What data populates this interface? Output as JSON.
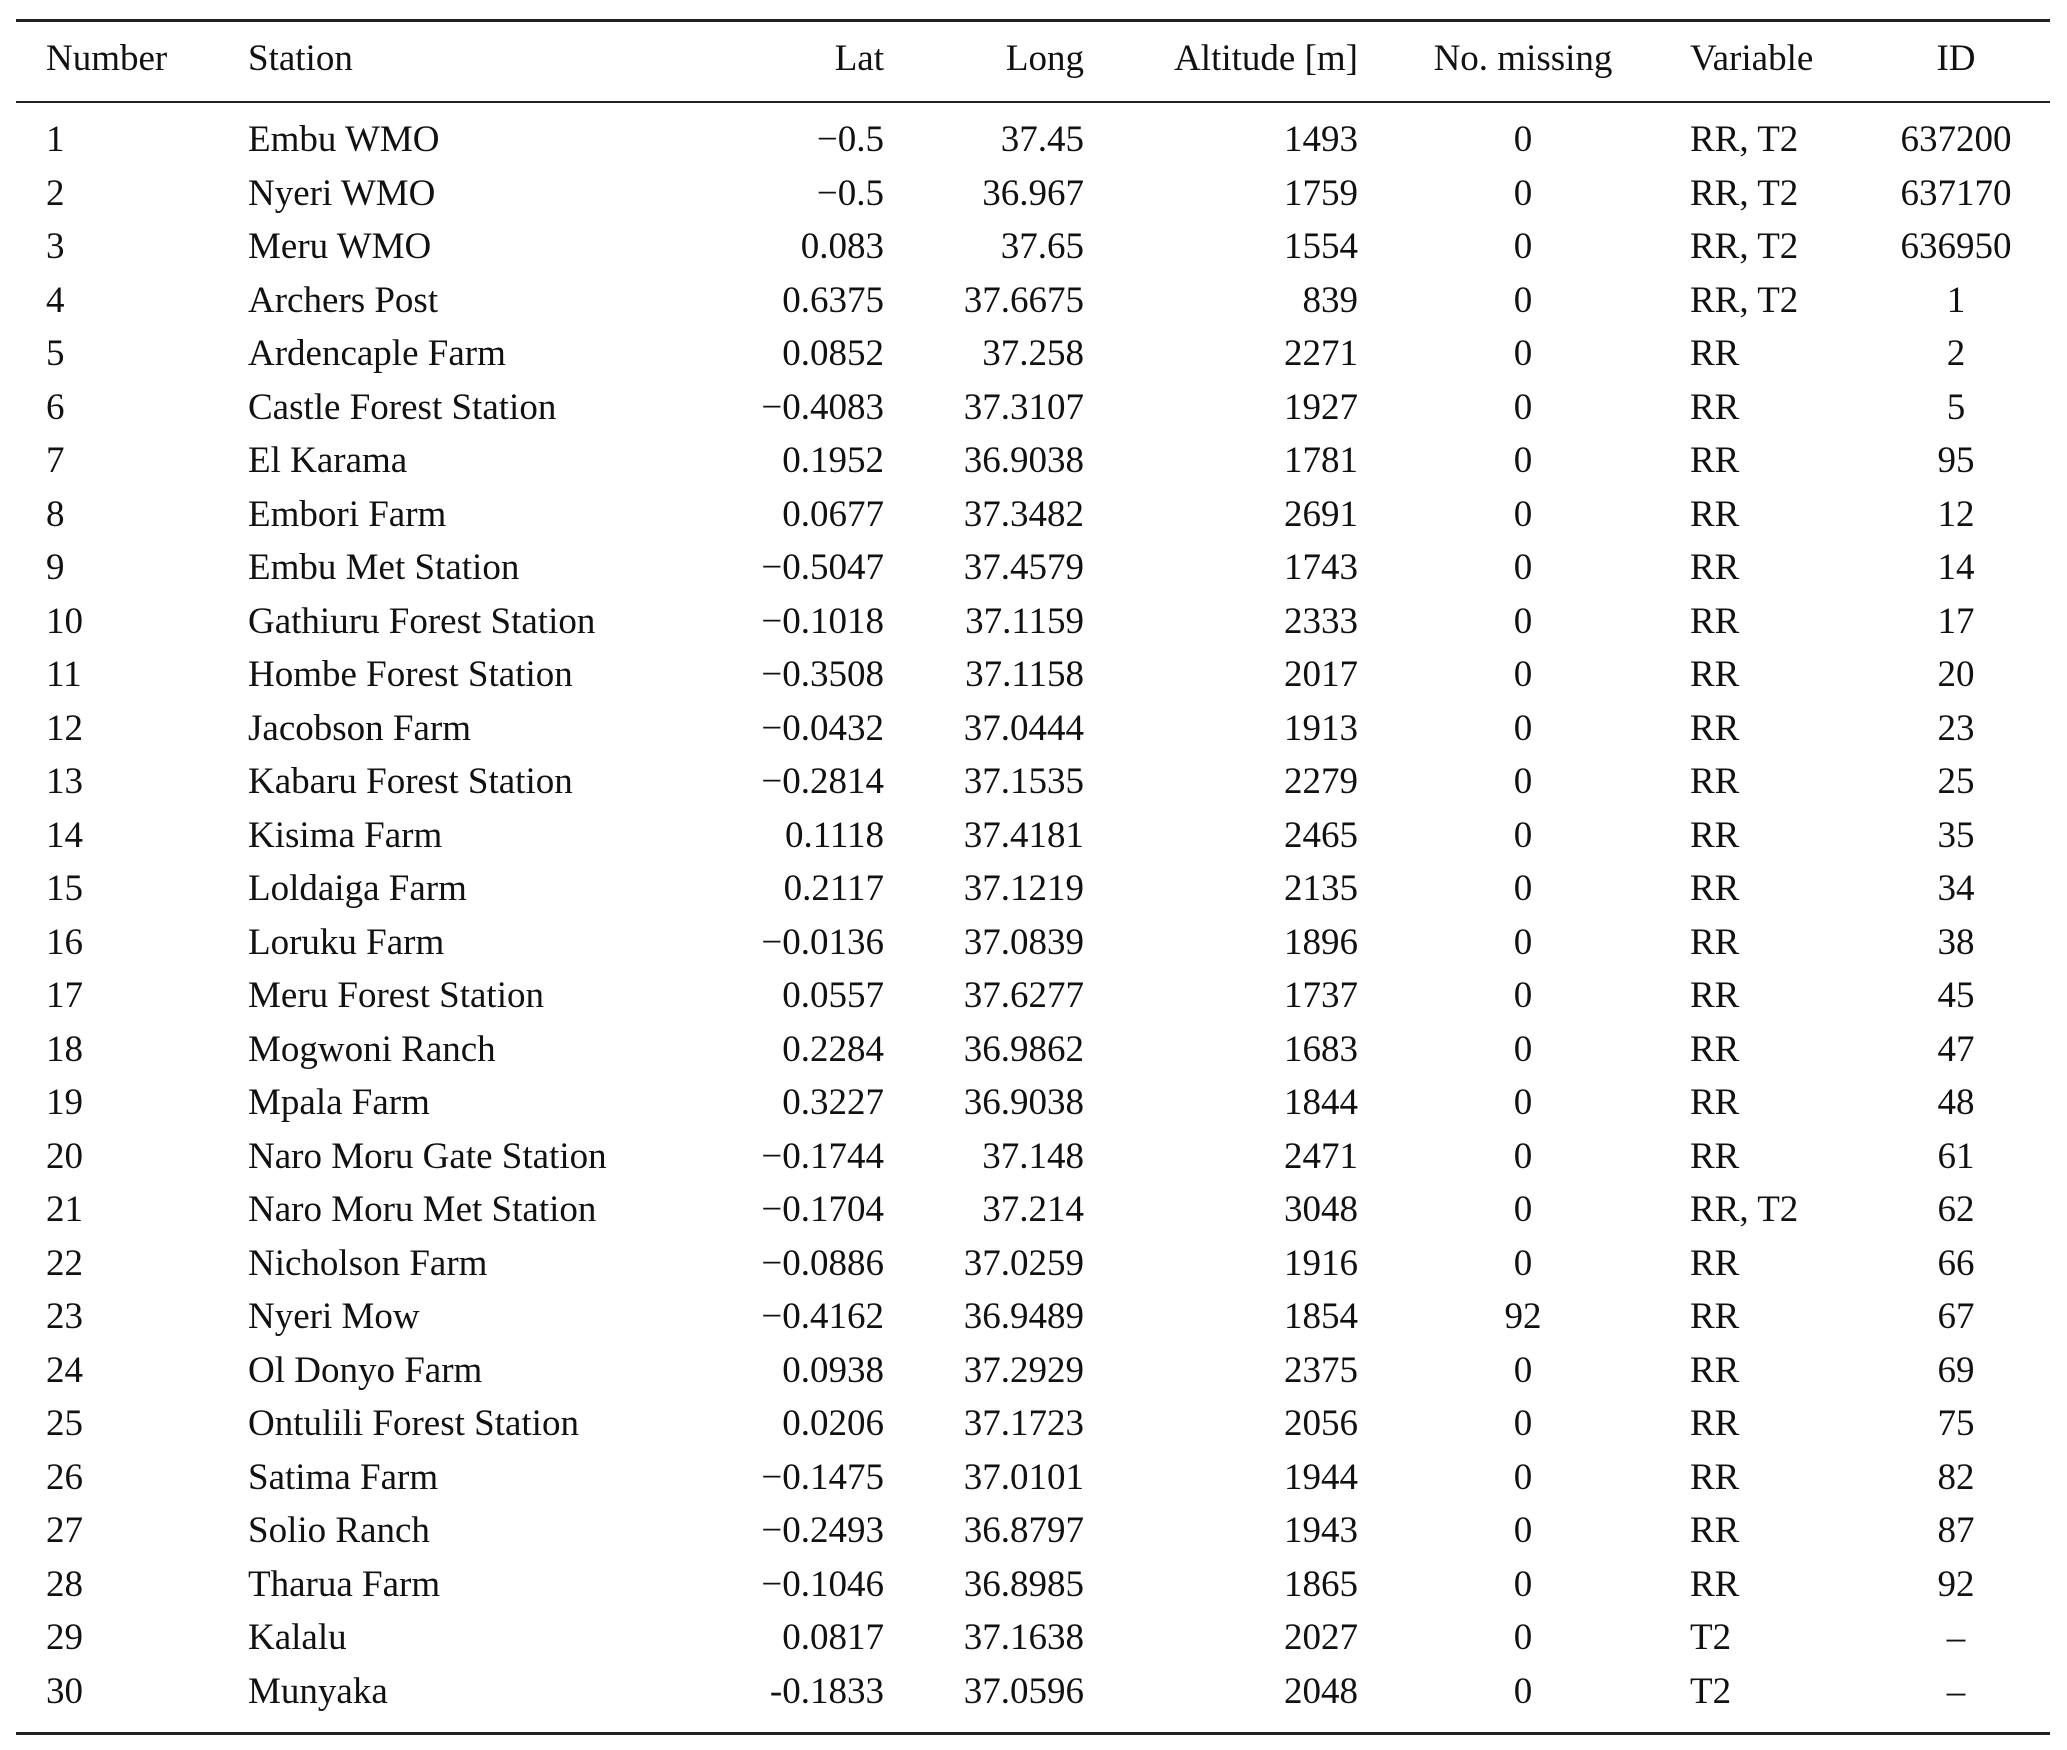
{
  "table": {
    "headers": [
      "Number",
      "Station",
      "Lat",
      "Long",
      "Altitude [m]",
      "No. missing",
      "Variable",
      "ID"
    ],
    "rows": [
      [
        "1",
        "Embu WMO",
        "−0.5",
        "37.45",
        "1493",
        "0",
        "RR, T2",
        "637200"
      ],
      [
        "2",
        "Nyeri WMO",
        "−0.5",
        "36.967",
        "1759",
        "0",
        "RR, T2",
        "637170"
      ],
      [
        "3",
        "Meru WMO",
        "0.083",
        "37.65",
        "1554",
        "0",
        "RR, T2",
        "636950"
      ],
      [
        "4",
        "Archers Post",
        "0.6375",
        "37.6675",
        "839",
        "0",
        "RR, T2",
        "1"
      ],
      [
        "5",
        "Ardencaple Farm",
        "0.0852",
        "37.258",
        "2271",
        "0",
        "RR",
        "2"
      ],
      [
        "6",
        "Castle Forest Station",
        "−0.4083",
        "37.3107",
        "1927",
        "0",
        "RR",
        "5"
      ],
      [
        "7",
        "El Karama",
        "0.1952",
        "36.9038",
        "1781",
        "0",
        "RR",
        "95"
      ],
      [
        "8",
        "Embori Farm",
        "0.0677",
        "37.3482",
        "2691",
        "0",
        "RR",
        "12"
      ],
      [
        "9",
        "Embu Met Station",
        "−0.5047",
        "37.4579",
        "1743",
        "0",
        "RR",
        "14"
      ],
      [
        "10",
        "Gathiuru Forest Station",
        "−0.1018",
        "37.1159",
        "2333",
        "0",
        "RR",
        "17"
      ],
      [
        "11",
        "Hombe Forest Station",
        "−0.3508",
        "37.1158",
        "2017",
        "0",
        "RR",
        "20"
      ],
      [
        "12",
        "Jacobson Farm",
        "−0.0432",
        "37.0444",
        "1913",
        "0",
        "RR",
        "23"
      ],
      [
        "13",
        "Kabaru Forest Station",
        "−0.2814",
        "37.1535",
        "2279",
        "0",
        "RR",
        "25"
      ],
      [
        "14",
        "Kisima Farm",
        "0.1118",
        "37.4181",
        "2465",
        "0",
        "RR",
        "35"
      ],
      [
        "15",
        "Loldaiga Farm",
        "0.2117",
        "37.1219",
        "2135",
        "0",
        "RR",
        "34"
      ],
      [
        "16",
        "Loruku Farm",
        "−0.0136",
        "37.0839",
        "1896",
        "0",
        "RR",
        "38"
      ],
      [
        "17",
        "Meru Forest Station",
        "0.0557",
        "37.6277",
        "1737",
        "0",
        "RR",
        "45"
      ],
      [
        "18",
        "Mogwoni Ranch",
        "0.2284",
        "36.9862",
        "1683",
        "0",
        "RR",
        "47"
      ],
      [
        "19",
        "Mpala Farm",
        "0.3227",
        "36.9038",
        "1844",
        "0",
        "RR",
        "48"
      ],
      [
        "20",
        "Naro Moru Gate Station",
        "−0.1744",
        "37.148",
        "2471",
        "0",
        "RR",
        "61"
      ],
      [
        "21",
        "Naro Moru Met Station",
        "−0.1704",
        "37.214",
        "3048",
        "0",
        "RR, T2",
        "62"
      ],
      [
        "22",
        "Nicholson Farm",
        "−0.0886",
        "37.0259",
        "1916",
        "0",
        "RR",
        "66"
      ],
      [
        "23",
        "Nyeri Mow",
        "−0.4162",
        "36.9489",
        "1854",
        "92",
        "RR",
        "67"
      ],
      [
        "24",
        "Ol Donyo Farm",
        "0.0938",
        "37.2929",
        "2375",
        "0",
        "RR",
        "69"
      ],
      [
        "25",
        "Ontulili Forest Station",
        "0.0206",
        "37.1723",
        "2056",
        "0",
        "RR",
        "75"
      ],
      [
        "26",
        "Satima Farm",
        "−0.1475",
        "37.0101",
        "1944",
        "0",
        "RR",
        "82"
      ],
      [
        "27",
        "Solio Ranch",
        "−0.2493",
        "36.8797",
        "1943",
        "0",
        "RR",
        "87"
      ],
      [
        "28",
        "Tharua Farm",
        "−0.1046",
        "36.8985",
        "1865",
        "0",
        "RR",
        "92"
      ],
      [
        "29",
        "Kalalu",
        "0.0817",
        "37.1638",
        "2027",
        "0",
        "T2",
        "–"
      ],
      [
        "30",
        "Munyaka",
        "-0.1833",
        "37.0596",
        "2048",
        "0",
        "T2",
        "–"
      ]
    ]
  }
}
